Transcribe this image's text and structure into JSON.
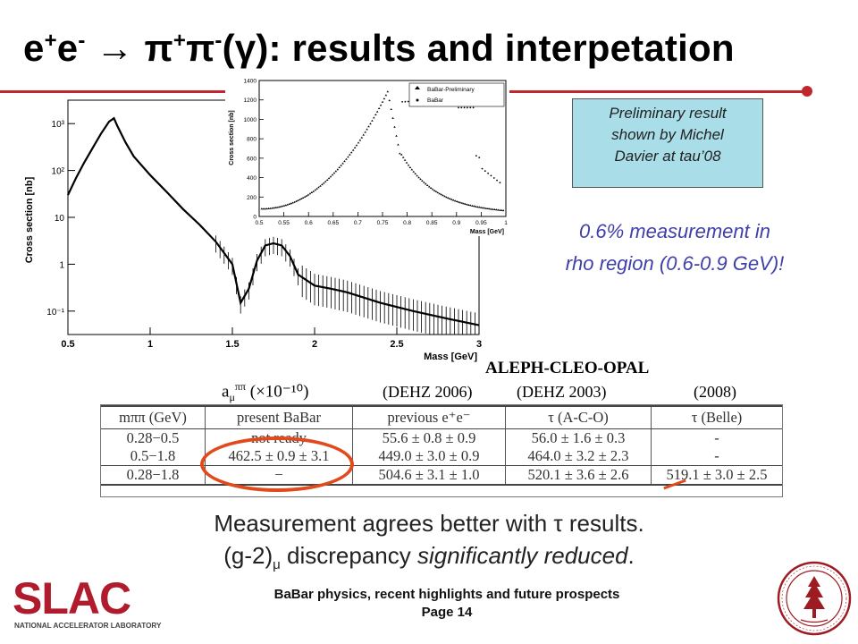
{
  "title": {
    "pre": "e",
    "sup1": "+",
    "mid1": "e",
    "sup2": "-",
    "arrow": " → π",
    "sup3": "+",
    "pi2": "π",
    "sup4": "-",
    "rest": "(γ): results and interpetation"
  },
  "main_plot": {
    "ylabel": "Cross section  [nb]",
    "xlabel": "Mass  [GeV]",
    "xticks": [
      "0.5",
      "1",
      "1.5",
      "2",
      "2.5",
      "3"
    ],
    "yticks": [
      "10³",
      "10²",
      "10",
      "1",
      "10⁻¹"
    ]
  },
  "inset_plot": {
    "ylabel": "Cross section [nb]",
    "xlabel": "Mass  [GeV]",
    "xticks": [
      "0.5",
      "0.55",
      "0.6",
      "0.65",
      "0.7",
      "0.75",
      "0.8",
      "0.85",
      "0.9",
      "0.95",
      "1"
    ],
    "yticks": [
      "0",
      "200",
      "400",
      "600",
      "800",
      "1000",
      "1200",
      "1400"
    ],
    "legend": [
      "BaBar-Preliminary",
      "BaBar"
    ]
  },
  "prelim_note": {
    "line1": "Preliminary result",
    "line2": "shown by Michel",
    "line3": "Davier at tau’08"
  },
  "highlight": {
    "line1": "0.6% measurement in",
    "line2": "rho region (0.6-0.9 GeV)!"
  },
  "aleph_label": "ALEPH-CLEO-OPAL",
  "amu_label": "a",
  "amu_sub": "μ",
  "amu_sup": "ππ",
  "amu_unit": " (×10⁻¹⁰)",
  "col_headers_top": [
    "(DEHZ 2006)",
    "(DEHZ 2003)",
    "(2008)"
  ],
  "table": {
    "headers": [
      "mππ (GeV)",
      "present BaBar",
      "previous e⁺e⁻",
      "τ (A-C-O)",
      "τ (Belle)"
    ],
    "rows": [
      [
        "0.28−0.5",
        "not ready",
        "55.6 ± 0.8 ± 0.9",
        "56.0 ± 1.6 ± 0.3",
        "-"
      ],
      [
        "0.5−1.8",
        "462.5 ± 0.9 ± 3.1",
        "449.0 ± 3.0 ± 0.9",
        "464.0 ± 3.2 ± 2.3",
        "-"
      ],
      [
        "0.28−1.8",
        "−",
        "504.6 ± 3.1 ± 1.0",
        "520.1 ± 3.6 ± 2.6",
        "519.1 ± 3.0 ± 2.5"
      ]
    ]
  },
  "conclusion": {
    "line1": "Measurement agrees better with τ results.",
    "line2_pre": "(g-2)",
    "line2_sub": "μ",
    "line2_mid": " discrepancy ",
    "line2_em": "significantly reduced",
    "line2_end": "."
  },
  "footer": {
    "line1": "BaBar physics, recent highlights and future prospects",
    "line2": "Page 14"
  },
  "logo": {
    "text": "SLAC",
    "subtitle": "NATIONAL ACCELERATOR LABORATORY"
  },
  "colors": {
    "accent_red": "#c0272d",
    "highlight_blue": "#3f3faa",
    "note_bg": "#a9dde8",
    "ellipse": "#e04a1c"
  }
}
